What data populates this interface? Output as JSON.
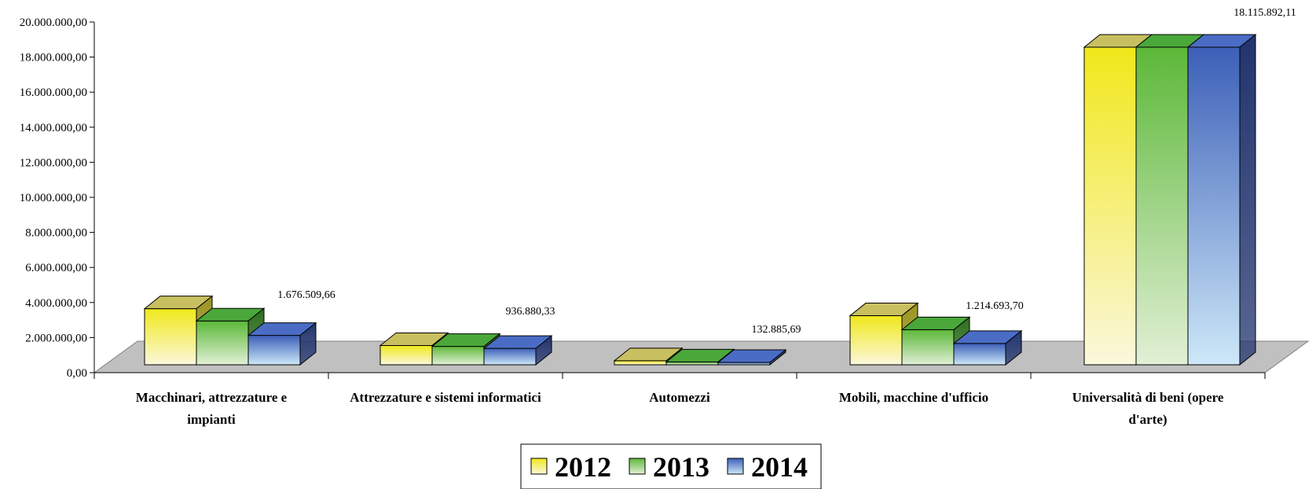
{
  "chart_data": {
    "type": "bar",
    "variant": "3d-clustered",
    "categories": [
      [
        "Macchinari, attrezzature e",
        "impianti"
      ],
      [
        "Attrezzature e sistemi informatici"
      ],
      [
        "Automezzi"
      ],
      [
        "Mobili, macchine d'ufficio"
      ],
      [
        "Universalità di beni    (opere",
        "d'arte)"
      ]
    ],
    "series": [
      {
        "name": "2012",
        "values": [
          3200000,
          1100000,
          230000,
          2800000,
          18115892.11
        ]
      },
      {
        "name": "2013",
        "values": [
          2500000,
          1050000,
          160000,
          2000000,
          18115892.11
        ]
      },
      {
        "name": "2014",
        "values": [
          1676509.66,
          936880.33,
          132885.69,
          1214693.7,
          18115892.11
        ]
      }
    ],
    "data_labels": [
      "1.676.509,66",
      "936.880,33",
      "132.885,69",
      "1.214.693,70",
      "18.115.892,11"
    ],
    "yticks": [
      "0,00",
      "2.000.000,00",
      "4.000.000,00",
      "6.000.000,00",
      "8.000.000,00",
      "10.000.000,00",
      "12.000.000,00",
      "14.000.000,00",
      "16.000.000,00",
      "18.000.000,00",
      "20.000.000,00"
    ],
    "ylim": [
      0,
      20000000
    ],
    "legend": {
      "placement": "bottom-center",
      "entries": [
        "2012",
        "2013",
        "2014"
      ]
    },
    "colors": {
      "2012": {
        "top": "#f0e81a",
        "bottom": "#fbf7dc",
        "side": "#9a9420",
        "cap": "#c8c060"
      },
      "2013": {
        "top": "#5cb838",
        "bottom": "#e2f0d6",
        "side": "#2e6e1e",
        "cap": "#4aa83a"
      },
      "2014": {
        "top": "#3c5fb8",
        "bottom": "#cde8f8",
        "side": "#22346e",
        "cap": "#4a6cc4"
      },
      "floor": "#c0c0c0"
    }
  }
}
